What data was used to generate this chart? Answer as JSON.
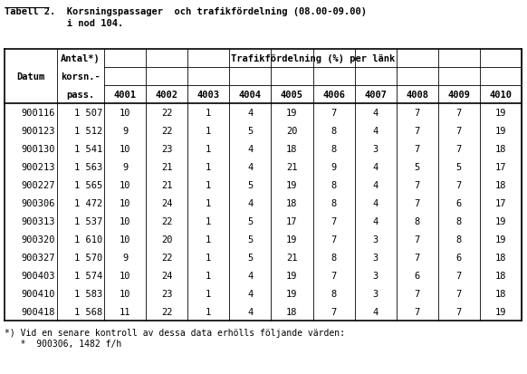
{
  "title_line1": "Tabell 2.  Korsningspassager  och trafikfördelning (08.00-09.00)",
  "title_line2": "           i nod 104.",
  "title_underline_word": "Tabell 2.",
  "background_color": "#ffffff",
  "font_family": "monospace",
  "col_labels": [
    "4001",
    "4002",
    "4003",
    "4004",
    "4005",
    "4006",
    "4007",
    "4008",
    "4009",
    "4010"
  ],
  "data_rows": [
    [
      "900116",
      "1 507",
      "10",
      "22",
      "1",
      "4",
      "19",
      "7",
      "4",
      "7",
      "7",
      "19"
    ],
    [
      "900123",
      "1 512",
      "9",
      "22",
      "1",
      "5",
      "20",
      "8",
      "4",
      "7",
      "7",
      "19"
    ],
    [
      "900130",
      "1 541",
      "10",
      "23",
      "1",
      "4",
      "18",
      "8",
      "3",
      "7",
      "7",
      "18"
    ],
    [
      "900213",
      "1 563",
      "9",
      "21",
      "1",
      "4",
      "21",
      "9",
      "4",
      "5",
      "5",
      "17"
    ],
    [
      "900227",
      "1 565",
      "10",
      "21",
      "1",
      "5",
      "19",
      "8",
      "4",
      "7",
      "7",
      "18"
    ],
    [
      "900306",
      "1 472",
      "10",
      "24",
      "1",
      "4",
      "18",
      "8",
      "4",
      "7",
      "6",
      "17"
    ],
    [
      "900313",
      "1 537",
      "10",
      "22",
      "1",
      "5",
      "17",
      "7",
      "4",
      "8",
      "8",
      "19"
    ],
    [
      "900320",
      "1 610",
      "10",
      "20",
      "1",
      "5",
      "19",
      "7",
      "3",
      "7",
      "8",
      "19"
    ],
    [
      "900327",
      "1 570",
      "9",
      "22",
      "1",
      "5",
      "21",
      "8",
      "3",
      "7",
      "6",
      "18"
    ],
    [
      "900403",
      "1 574",
      "10",
      "24",
      "1",
      "4",
      "19",
      "7",
      "3",
      "6",
      "7",
      "18"
    ],
    [
      "900410",
      "1 583",
      "10",
      "23",
      "1",
      "4",
      "19",
      "8",
      "3",
      "7",
      "7",
      "18"
    ],
    [
      "900418",
      "1 568",
      "11",
      "22",
      "1",
      "4",
      "18",
      "7",
      "4",
      "7",
      "7",
      "19"
    ]
  ],
  "footnote_line1": "*) Vid en senare kontroll av dessa data erhölls följande värden:",
  "footnote_line2": "   *  900306, 1482 f/h",
  "traf_header": "Trafikfördelning (%) per länk",
  "datum_header": "Datum",
  "antal_header1": "Antal*)",
  "antal_header2": "korsn.-",
  "antal_header3": "pass."
}
